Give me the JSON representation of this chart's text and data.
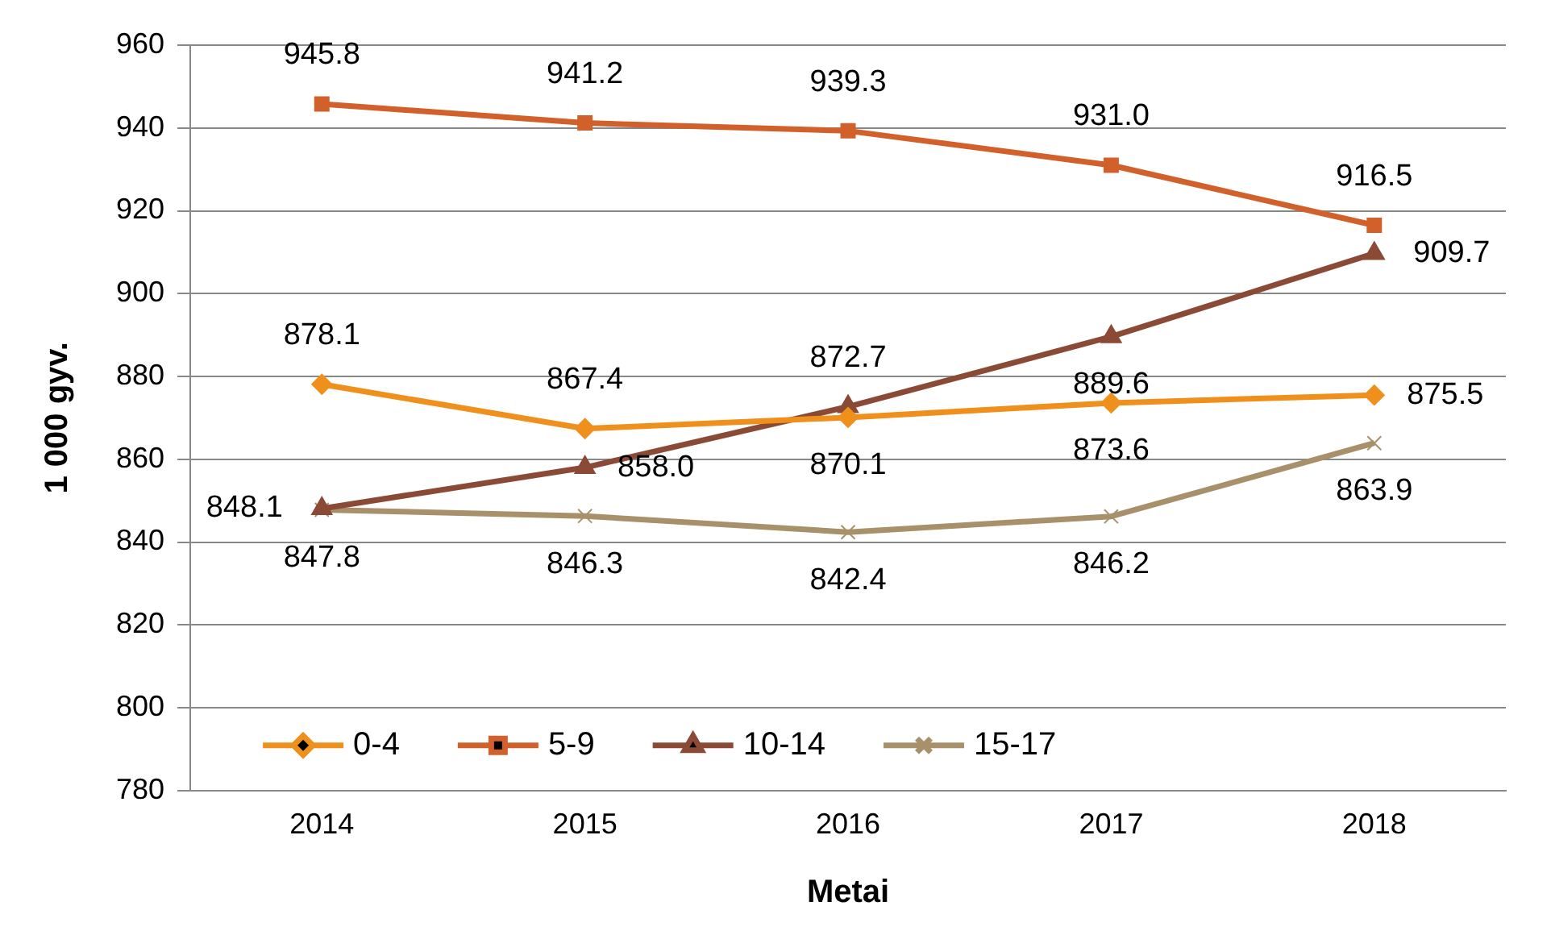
{
  "chart_data": {
    "type": "line",
    "xlabel": "Metai",
    "ylabel": "1 000 gyv.",
    "categories": [
      "2014",
      "2015",
      "2016",
      "2017",
      "2018"
    ],
    "series": [
      {
        "name": "0-4",
        "color": "#f0901c",
        "marker": "diamond",
        "values": [
          878.1,
          867.4,
          870.1,
          873.6,
          875.5
        ],
        "value_labels": [
          "878.1",
          "867.4",
          "870.1",
          "873.6",
          "875.5"
        ]
      },
      {
        "name": "5-9",
        "color": "#d2602a",
        "marker": "square",
        "values": [
          945.8,
          941.2,
          939.3,
          931.0,
          916.5
        ],
        "value_labels": [
          "945.8",
          "941.2",
          "939.3",
          "931.0",
          "916.5"
        ]
      },
      {
        "name": "10-14",
        "color": "#8b4a35",
        "marker": "triangle",
        "values": [
          848.1,
          858.0,
          872.7,
          889.6,
          909.7
        ],
        "value_labels": [
          "848.1",
          "858.0",
          "872.7",
          "889.6",
          "909.7"
        ]
      },
      {
        "name": "15-17",
        "color": "#a8916a",
        "marker": "cross",
        "values": [
          847.8,
          846.3,
          842.4,
          846.2,
          863.9
        ],
        "value_labels": [
          "847.8",
          "846.3",
          "842.4",
          "846.2",
          "863.9"
        ]
      }
    ],
    "ylim": [
      780,
      960
    ],
    "yticks": [
      780,
      800,
      820,
      840,
      860,
      880,
      900,
      920,
      940,
      960
    ],
    "grid": "y",
    "legend": "bottom left",
    "line_style": "solid"
  }
}
